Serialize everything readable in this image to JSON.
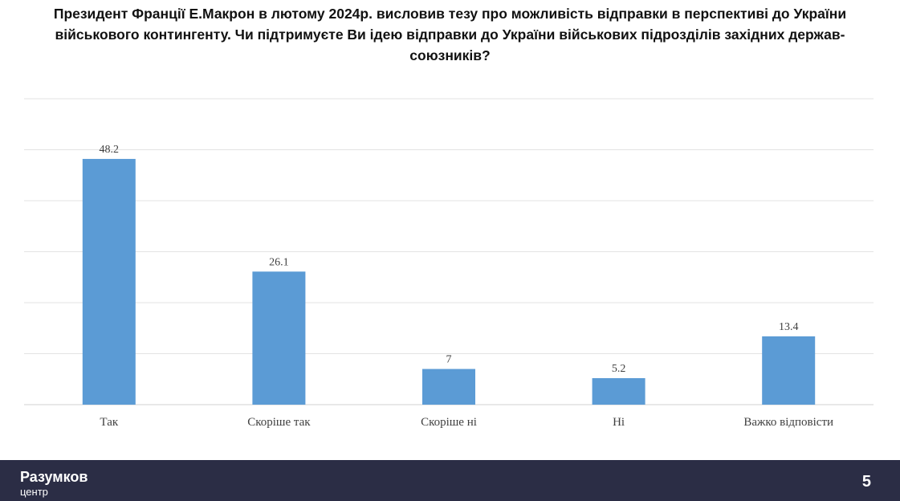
{
  "chart_data": {
    "type": "bar",
    "title": "Президент Франції Е.Макрон в лютому 2024р. висловив тезу про можливість відправки в перспективі до України військового контингенту. Чи підтримуєте Ви ідею відправки до України військових підрозділів західних держав-союзників?",
    "title_lines": [
      "Президент Франції Е.Макрон в лютому 2024р. висловив тезу про можливість відправки в перспективі до України",
      "військового контингенту. Чи підтримуєте Ви ідею відправки до України військових підрозділів західних держав-",
      "союзників?"
    ],
    "categories": [
      "Так",
      "Скоріше так",
      "Скоріше ні",
      "Ні",
      "Важко відповісти"
    ],
    "values": [
      48.2,
      26.1,
      7,
      5.2,
      13.4
    ],
    "value_labels": [
      "48.2",
      "26.1",
      "7",
      "5.2",
      "13.4"
    ],
    "ylim": [
      0,
      60
    ],
    "grid": true,
    "legend": "none",
    "colors": {
      "bar": "#5b9bd5",
      "grid": "#e3e3e3",
      "text": "#404040"
    }
  },
  "footer": {
    "brand_name": "Разумков",
    "brand_sub": "центр",
    "page_number": "5",
    "bg_color": "#2b2d45"
  }
}
